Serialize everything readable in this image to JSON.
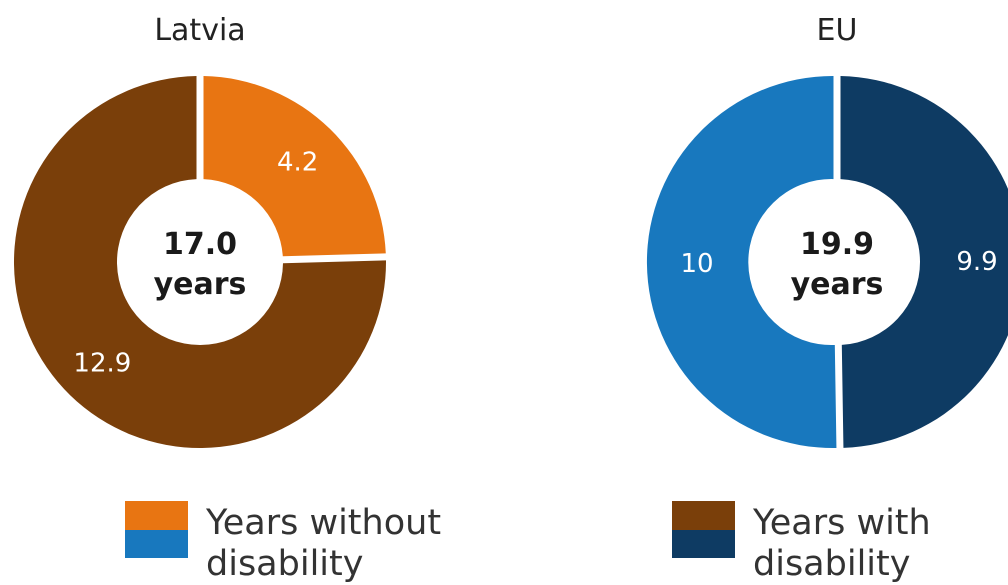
{
  "chart_data": [
    {
      "type": "pie",
      "title": "Latvia",
      "total_value": "17.0",
      "total_unit": "years",
      "slices": [
        {
          "name": "Years without disability",
          "value": 4.2,
          "label": "4.2",
          "color": "#E87512"
        },
        {
          "name": "Years with disability",
          "value": 12.9,
          "label": "12.9",
          "color": "#7A3F0A"
        }
      ]
    },
    {
      "type": "pie",
      "title": "EU",
      "total_value": "19.9",
      "total_unit": "years",
      "slices": [
        {
          "name": "Years with disability",
          "value": 9.9,
          "label": "9.9",
          "color": "#0E3B63"
        },
        {
          "name": "Years without disability",
          "value": 10,
          "label": "10",
          "color": "#1878BE"
        }
      ]
    }
  ],
  "legend": [
    {
      "line1": "Years without",
      "line2": "disability",
      "colors": [
        "#E87512",
        "#1878BE"
      ]
    },
    {
      "line1": "Years with",
      "line2": "disability",
      "colors": [
        "#7A3F0A",
        "#0E3B63"
      ]
    }
  ]
}
